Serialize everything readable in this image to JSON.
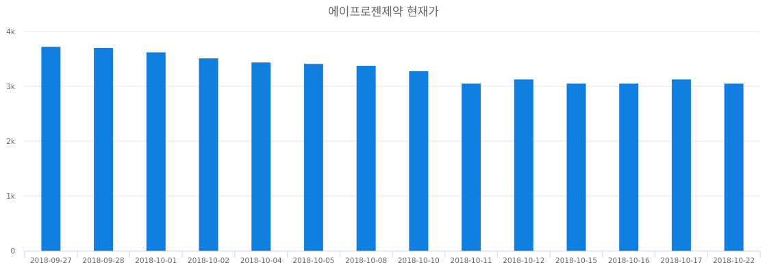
{
  "chart_data": {
    "type": "bar",
    "title": "에이프로젠제약 현재가",
    "xlabel": "",
    "ylabel": "",
    "ylim": [
      0,
      4000
    ],
    "yticks": [
      0,
      1000,
      2000,
      3000,
      4000
    ],
    "ytick_labels": [
      "0",
      "1k",
      "2k",
      "3k",
      "4k"
    ],
    "grid": true,
    "legend": "none",
    "bar_color": "#117fe0",
    "categories": [
      "2018-09-27",
      "2018-09-28",
      "2018-10-01",
      "2018-10-02",
      "2018-10-04",
      "2018-10-05",
      "2018-10-08",
      "2018-10-10",
      "2018-10-11",
      "2018-10-12",
      "2018-10-15",
      "2018-10-16",
      "2018-10-17",
      "2018-10-22"
    ],
    "series": [
      {
        "name": "현재가",
        "values": [
          3720,
          3700,
          3620,
          3510,
          3435,
          3410,
          3375,
          3275,
          3050,
          3125,
          3050,
          3050,
          3125,
          3050
        ]
      }
    ]
  }
}
